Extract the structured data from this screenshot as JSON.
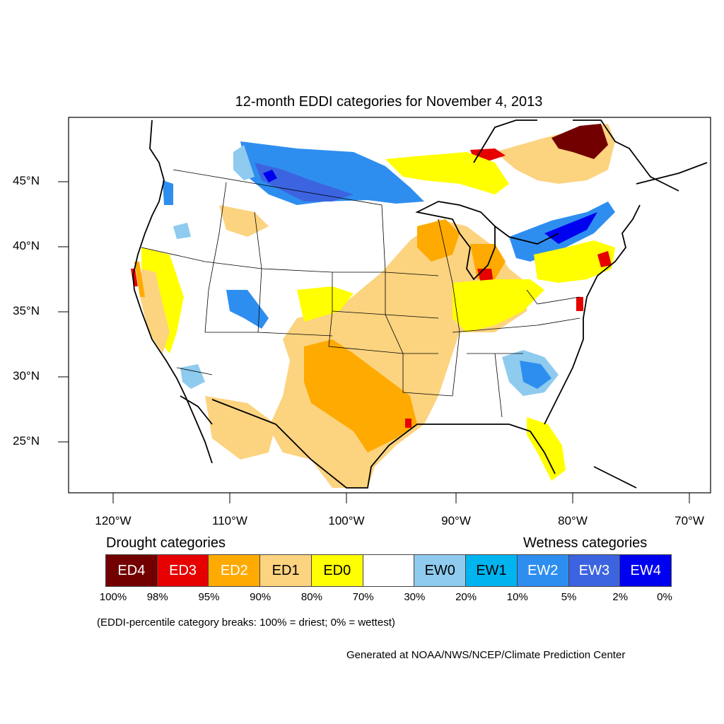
{
  "title": "12-month EDDI categories for November 4, 2013",
  "lat_labels": [
    "45°N",
    "40°N",
    "35°N",
    "30°N",
    "25°N"
  ],
  "lon_labels": [
    "120°W",
    "110°W",
    "100°W",
    "90°W",
    "80°W",
    "70°W"
  ],
  "drought_heading": "Drought categories",
  "wetness_heading": "Wetness categories",
  "legend": {
    "categories": [
      {
        "label": "ED4",
        "color": "#730000",
        "text_color": "#ffffff"
      },
      {
        "label": "ED3",
        "color": "#e60000",
        "text_color": "#ffffff"
      },
      {
        "label": "ED2",
        "color": "#ffaa00",
        "text_color": "#ffffff"
      },
      {
        "label": "ED1",
        "color": "#fcd37f",
        "text_color": "#000000"
      },
      {
        "label": "ED0",
        "color": "#ffff00",
        "text_color": "#000000"
      },
      {
        "label": "",
        "color": "#ffffff",
        "text_color": "#000000"
      },
      {
        "label": "EW0",
        "color": "#8ecbee",
        "text_color": "#000000"
      },
      {
        "label": "EW1",
        "color": "#00b4f0",
        "text_color": "#000000"
      },
      {
        "label": "EW2",
        "color": "#2e8ef0",
        "text_color": "#ffffff"
      },
      {
        "label": "EW3",
        "color": "#3c64e0",
        "text_color": "#ffffff"
      },
      {
        "label": "EW4",
        "color": "#0000f0",
        "text_color": "#ffffff"
      }
    ],
    "breaks": [
      "100%",
      "98%",
      "95%",
      "90%",
      "80%",
      "70%",
      "30%",
      "20%",
      "10%",
      "5%",
      "2%",
      "0%"
    ]
  },
  "note": "(EDDI-percentile category breaks: 100% = driest; 0% = wettest)",
  "credit": "Generated at NOAA/NWS/NCEP/Climate Prediction Center"
}
